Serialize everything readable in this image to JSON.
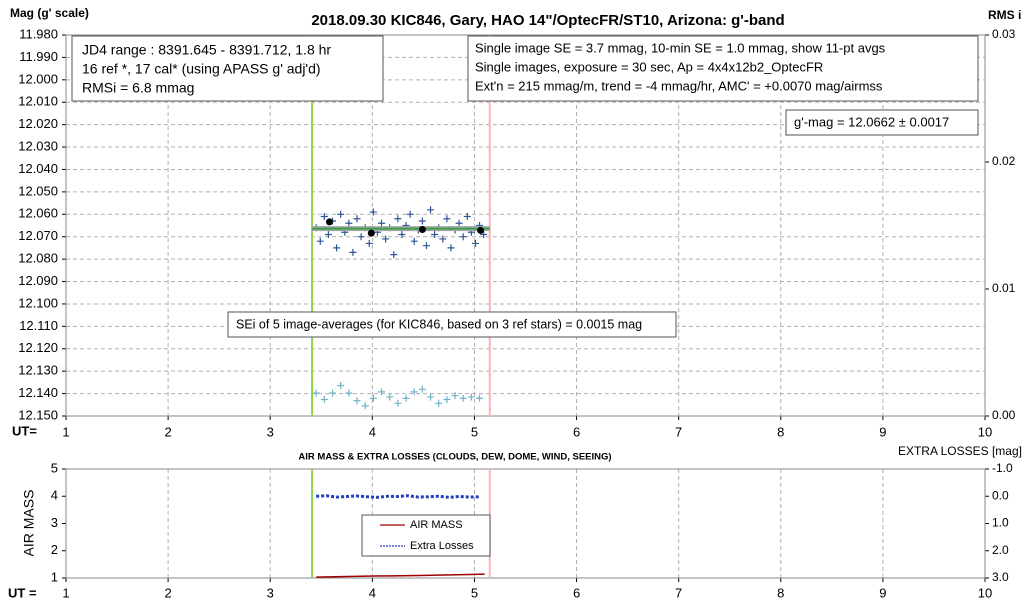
{
  "chart_data": [
    {
      "type": "scatter",
      "title": "2018.09.30  KIC846,  Gary, HAO 14\"/OptecFR/ST10,  Arizona:  g'-band",
      "y_label": "Mag (g' scale)",
      "y2_label": "RMS i",
      "x_label": "UT=",
      "xlim": [
        1,
        10
      ],
      "xticks": [
        1,
        2,
        3,
        4,
        5,
        6,
        7,
        8,
        9,
        10
      ],
      "ylim": [
        11.98,
        12.15
      ],
      "y_inverted": true,
      "yticks": [
        {
          "value": 11.98,
          "label": "11.980"
        },
        {
          "value": 11.99,
          "label": "11.990"
        },
        {
          "value": 12.0,
          "label": "12.000"
        },
        {
          "value": 12.01,
          "label": "12.010"
        },
        {
          "value": 12.02,
          "label": "12.020"
        },
        {
          "value": 12.03,
          "label": "12.030"
        },
        {
          "value": 12.04,
          "label": "12.040"
        },
        {
          "value": 12.05,
          "label": "12.050"
        },
        {
          "value": 12.06,
          "label": "12.060"
        },
        {
          "value": 12.07,
          "label": "12.070"
        },
        {
          "value": 12.08,
          "label": "12.080"
        },
        {
          "value": 12.09,
          "label": "12.090"
        },
        {
          "value": 12.1,
          "label": "12.100"
        },
        {
          "value": 12.11,
          "label": "12.110"
        },
        {
          "value": 12.12,
          "label": "12.120"
        },
        {
          "value": 12.13,
          "label": "12.130"
        },
        {
          "value": 12.14,
          "label": "12.140"
        },
        {
          "value": 12.15,
          "label": "12.150"
        }
      ],
      "y2lim": [
        0,
        0.03
      ],
      "y2ticks": [
        {
          "value": 0,
          "label": "0.00"
        },
        {
          "value": 0.01,
          "label": "0.01"
        },
        {
          "value": 0.02,
          "label": "0.02"
        },
        {
          "value": 0.03,
          "label": "0.03"
        }
      ],
      "grid": "both",
      "markers": [
        {
          "x": 3.41,
          "color": "#92d050"
        },
        {
          "x": 5.15,
          "color": "#f4b6b6"
        }
      ],
      "series": [
        {
          "marker": "plus",
          "color": "#2f5597",
          "x": [
            3.45,
            3.49,
            3.53,
            3.57,
            3.61,
            3.65,
            3.69,
            3.73,
            3.77,
            3.81,
            3.85,
            3.89,
            3.93,
            3.97,
            4.01,
            4.05,
            4.09,
            4.13,
            4.17,
            4.21,
            4.25,
            4.29,
            4.33,
            4.37,
            4.41,
            4.45,
            4.49,
            4.53,
            4.57,
            4.61,
            4.65,
            4.69,
            4.73,
            4.77,
            4.81,
            4.85,
            4.89,
            4.93,
            4.97,
            5.01,
            5.05,
            5.09
          ],
          "values": [
            12.066,
            12.072,
            12.061,
            12.069,
            12.063,
            12.075,
            12.06,
            12.068,
            12.064,
            12.077,
            12.062,
            12.07,
            12.066,
            12.073,
            12.059,
            12.068,
            12.064,
            12.071,
            12.066,
            12.078,
            12.062,
            12.069,
            12.065,
            12.06,
            12.072,
            12.067,
            12.063,
            12.074,
            12.058,
            12.069,
            12.066,
            12.071,
            12.062,
            12.075,
            12.067,
            12.064,
            12.07,
            12.061,
            12.068,
            12.073,
            12.065,
            12.069
          ]
        },
        {
          "marker": "line",
          "color": "#a6a6a6",
          "width": 5,
          "x": [
            3.41,
            5.15
          ],
          "values": [
            12.0664,
            12.0664
          ]
        },
        {
          "marker": "line",
          "color": "#3aa14a",
          "width": 2,
          "x": [
            3.41,
            5.15
          ],
          "values": [
            12.0664,
            12.0664
          ]
        },
        {
          "marker": "dot",
          "color": "#000000",
          "x": [
            3.58,
            3.99,
            4.49,
            5.06
          ],
          "values": [
            12.0634,
            12.0684,
            12.0668,
            12.0672
          ]
        },
        {
          "marker": "plus",
          "color": "#6fb3c9",
          "axis": "y2",
          "x": [
            3.45,
            3.53,
            3.61,
            3.69,
            3.77,
            3.85,
            3.93,
            4.01,
            4.09,
            4.17,
            4.25,
            4.33,
            4.41,
            4.49,
            4.57,
            4.65,
            4.73,
            4.81,
            4.89,
            4.97,
            5.05
          ],
          "values": [
            0.0018,
            0.0013,
            0.0018,
            0.0024,
            0.0018,
            0.0012,
            0.0008,
            0.0014,
            0.0019,
            0.0015,
            0.001,
            0.0014,
            0.0019,
            0.0021,
            0.0015,
            0.001,
            0.0013,
            0.0016,
            0.0014,
            0.0015,
            0.0014
          ]
        }
      ],
      "info_box": [
        "JD4 range : 8391.645 - 8391.712,  1.8  hr",
        "16 ref *, 17 cal* (using APASS g' adj'd)",
        "RMSi = 6.8 mmag"
      ],
      "params_box": [
        "Single image SE = 3.7 mmag, 10-min SE = 1.0 mmag, show  11-pt avgs",
        "Single images, exposure = 30 sec, Ap = 4x4x12b2_OptecFR",
        "Ext'n = 215 mmag/m, trend =  -4 mmag/hr, AMC' = +0.0070 mag/airmss"
      ],
      "result_box": "g'-mag = 12.0662 ± 0.0017",
      "sei_note": "SEi of 5 image-averages (for KIC846, based on 3 ref stars) = 0.0015  mag"
    },
    {
      "type": "line",
      "title": "AIR MASS & EXTRA LOSSES (CLOUDS, DEW, DOME, WIND, SEEING)",
      "y_label": "AIR MASS",
      "y2_label": "EXTRA LOSSES [mag]",
      "x_label": "UT =",
      "xlim": [
        1,
        10
      ],
      "xticks": [
        1,
        2,
        3,
        4,
        5,
        6,
        7,
        8,
        9,
        10
      ],
      "ylim": [
        1,
        5
      ],
      "yticks": [
        1,
        2,
        3,
        4,
        5
      ],
      "y2lim": [
        -1,
        3
      ],
      "y2_inverted": true,
      "y2ticks": [
        {
          "value": -1,
          "label": "-1.0"
        },
        {
          "value": 0,
          "label": "0.0"
        },
        {
          "value": 1,
          "label": "1.0"
        },
        {
          "value": 2,
          "label": "2.0"
        },
        {
          "value": 3,
          "label": "3.0"
        }
      ],
      "grid": "x",
      "markers": [
        {
          "x": 3.41,
          "color": "#92d050"
        },
        {
          "x": 5.15,
          "color": "#f4b6b6"
        }
      ],
      "series": [
        {
          "name": "AIR MASS",
          "marker": "line",
          "color": "#a00000",
          "width": 1.5,
          "x": [
            3.45,
            3.7,
            3.95,
            4.2,
            4.45,
            4.7,
            4.95,
            5.1
          ],
          "values": [
            1.03,
            1.05,
            1.07,
            1.08,
            1.09,
            1.11,
            1.13,
            1.14
          ]
        },
        {
          "name": "Extra Losses",
          "marker": "dash",
          "color": "#1f3fbf",
          "width": 3,
          "axis": "y2",
          "x": [
            3.45,
            3.55,
            3.65,
            3.75,
            3.85,
            3.95,
            4.05,
            4.15,
            4.25,
            4.35,
            4.45,
            4.55,
            4.65,
            4.75,
            4.85,
            4.95,
            5.05
          ],
          "values": [
            0.0,
            -0.02,
            0.03,
            0.01,
            -0.01,
            0.02,
            0.04,
            0.0,
            0.01,
            -0.02,
            0.03,
            0.02,
            0.0,
            0.04,
            0.01,
            0.03,
            0.02
          ]
        }
      ]
    }
  ]
}
